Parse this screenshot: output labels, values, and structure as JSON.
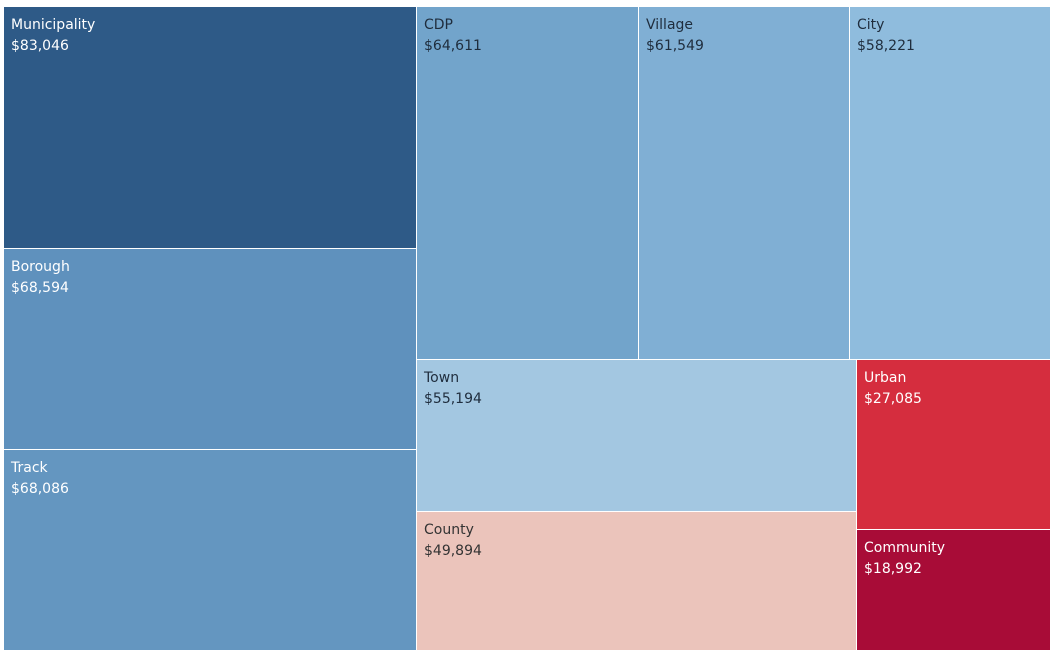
{
  "chart_data": {
    "type": "treemap",
    "items": [
      {
        "name": "Municipality",
        "label": "$83,046",
        "value": 83046,
        "color": "#2e5a87",
        "text_color": "#ffffff"
      },
      {
        "name": "Borough",
        "label": "$68,594",
        "value": 68594,
        "color": "#5f91bd",
        "text_color": "#ffffff"
      },
      {
        "name": "Track",
        "label": "$68,086",
        "value": 68086,
        "color": "#6496c0",
        "text_color": "#ffffff"
      },
      {
        "name": "CDP",
        "label": "$64,611",
        "value": 64611,
        "color": "#72a4cb",
        "text_color": "#1f2d3d"
      },
      {
        "name": "Village",
        "label": "$61,549",
        "value": 61549,
        "color": "#80afd4",
        "text_color": "#1f2d3d"
      },
      {
        "name": "City",
        "label": "$58,221",
        "value": 58221,
        "color": "#8fbcdd",
        "text_color": "#1f2d3d"
      },
      {
        "name": "Town",
        "label": "$55,194",
        "value": 55194,
        "color": "#a3c7e1",
        "text_color": "#1f2d3d"
      },
      {
        "name": "County",
        "label": "$49,894",
        "value": 49894,
        "color": "#ebc4bb",
        "text_color": "#333333"
      },
      {
        "name": "Urban",
        "label": "$27,085",
        "value": 27085,
        "color": "#d52d3e",
        "text_color": "#ffffff"
      },
      {
        "name": "Community",
        "label": "$18,992",
        "value": 18992,
        "color": "#a80c37",
        "text_color": "#ffffff"
      }
    ]
  }
}
